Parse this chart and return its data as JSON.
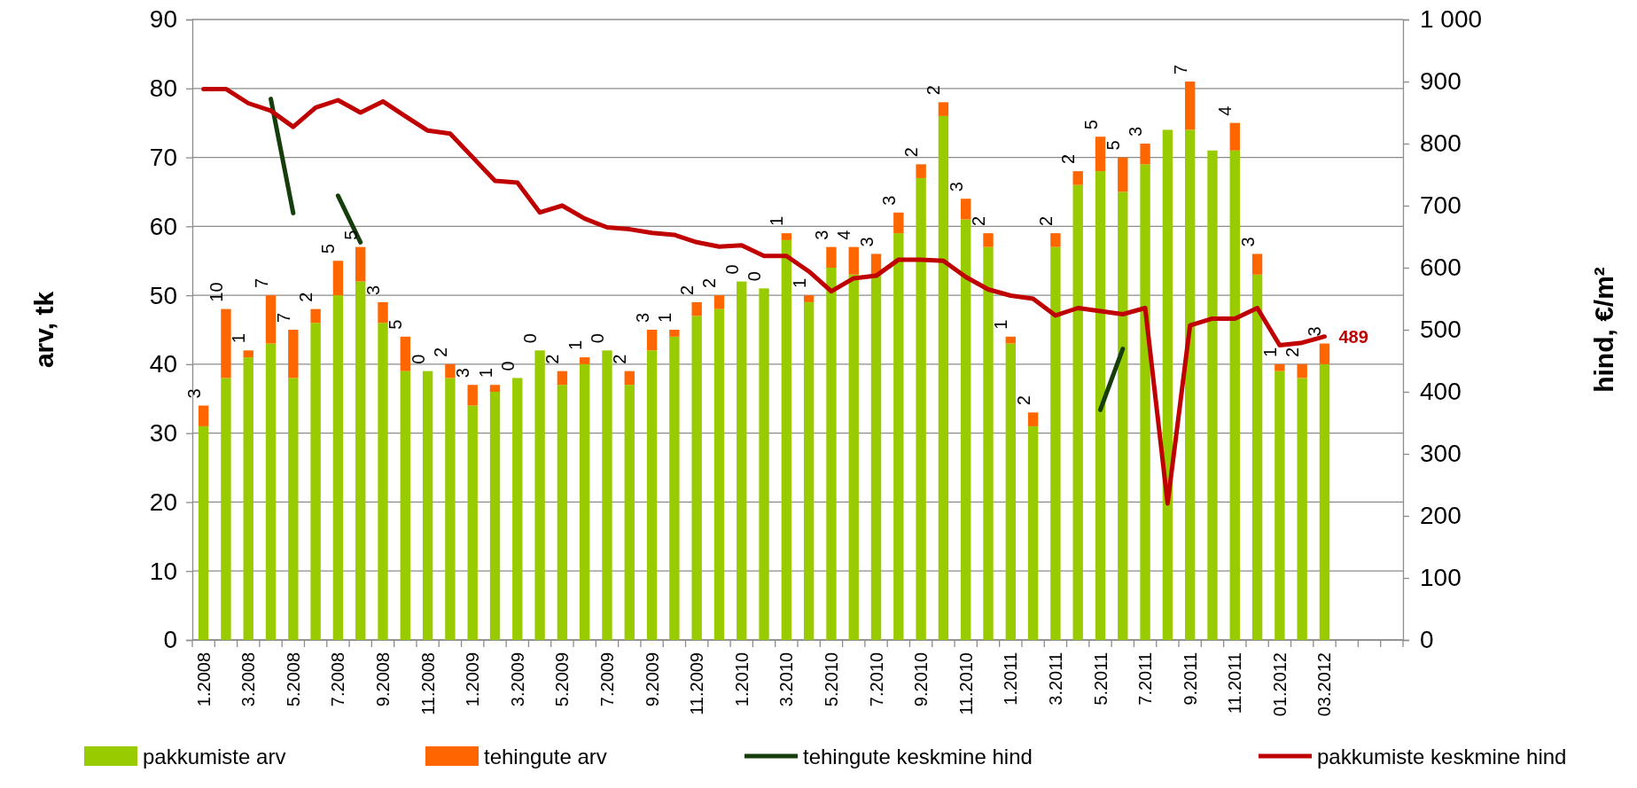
{
  "chart_data": {
    "type": "bar",
    "stacked": true,
    "ylabel": "arv, tk",
    "y2label": "hind, €/m²",
    "categories": [
      "1.2008",
      null,
      "3.2008",
      null,
      "5.2008",
      null,
      "7.2008",
      null,
      "9.2008",
      null,
      "11.2008",
      null,
      "1.2009",
      null,
      "3.2009",
      null,
      "5.2009",
      null,
      "7.2009",
      null,
      "9.2009",
      null,
      "11.2009",
      null,
      "1.2010",
      null,
      "3.2010",
      null,
      "5.2010",
      null,
      "7.2010",
      null,
      "9.2010",
      null,
      "11.2010",
      null,
      "1.2011",
      null,
      "3.2011",
      null,
      "5.2011",
      null,
      "7.2011",
      null,
      "9.2011",
      null,
      "11.2011",
      null,
      "01.2012",
      null,
      "03.2012",
      null,
      null,
      null
    ],
    "ylim": [
      0,
      90
    ],
    "yticks": [
      0,
      10,
      20,
      30,
      40,
      50,
      60,
      70,
      80,
      90
    ],
    "y2lim": [
      0,
      1000
    ],
    "y2ticks": [
      0,
      100,
      200,
      300,
      400,
      500,
      600,
      700,
      800,
      900,
      {
        "value": 1000,
        "label": "1 000"
      }
    ],
    "grid": "y",
    "legend": "bottom",
    "series": [
      {
        "name": "pakkumiste arv",
        "color": "#99cc00",
        "values": [
          31,
          38,
          41,
          43,
          38,
          46,
          50,
          52,
          46,
          39,
          39,
          38,
          34,
          36,
          38,
          42,
          37,
          40,
          42,
          37,
          42,
          44,
          47,
          48,
          52,
          51,
          58,
          49,
          54,
          53,
          53,
          59,
          67,
          76,
          61,
          57,
          43,
          31,
          57,
          66,
          68,
          65,
          69,
          74,
          74,
          71,
          71,
          53,
          39,
          38,
          40,
          null,
          null,
          null
        ]
      },
      {
        "name": "tehingute arv",
        "color": "#ff6600",
        "values": [
          3,
          10,
          1,
          7,
          7,
          2,
          5,
          5,
          3,
          5,
          0,
          2,
          3,
          1,
          0,
          0,
          2,
          1,
          0,
          2,
          3,
          1,
          2,
          2,
          0,
          0,
          1,
          1,
          3,
          4,
          3,
          3,
          2,
          2,
          3,
          2,
          1,
          2,
          2,
          2,
          5,
          5,
          3,
          0,
          7,
          0,
          4,
          3,
          1,
          2,
          3,
          null,
          null,
          null
        ],
        "value_labels": [
          "3",
          "10",
          "1",
          "7",
          "7",
          "2",
          "5",
          "5",
          "3",
          "5",
          "0",
          "2",
          "3",
          "1",
          "0",
          "0",
          "2",
          "1",
          "0",
          "2",
          "3",
          "1",
          "2",
          "2",
          "0",
          "0",
          "1",
          "1",
          "3",
          "4",
          "3",
          "3",
          "2",
          "2",
          "3",
          "2",
          "1",
          "2",
          "2",
          "2",
          "5",
          "5",
          "3",
          null,
          "7",
          null,
          "4",
          "3",
          "1",
          "2",
          "3",
          null,
          null,
          null
        ]
      },
      {
        "name": "tehingute keskmine hind",
        "type": "line",
        "axis": "y2",
        "color": "#163e0c",
        "values": [
          null,
          null,
          null,
          872,
          688,
          null,
          716,
          641,
          null,
          null,
          null,
          null,
          null,
          null,
          null,
          null,
          null,
          null,
          null,
          null,
          null,
          null,
          null,
          null,
          null,
          null,
          null,
          null,
          null,
          null,
          null,
          null,
          null,
          null,
          null,
          null,
          null,
          null,
          null,
          null,
          371,
          469,
          null,
          null,
          null,
          null,
          null,
          null,
          null,
          null,
          null,
          null,
          null,
          null
        ]
      },
      {
        "name": "pakkumiste keskmine hind",
        "type": "line",
        "axis": "y2",
        "color": "#c00000",
        "values": [
          888,
          888,
          865,
          853,
          827,
          858,
          870,
          850,
          868,
          844,
          821,
          816,
          778,
          740,
          737,
          689,
          700,
          679,
          665,
          662,
          656,
          653,
          641,
          634,
          636,
          619,
          619,
          594,
          562,
          583,
          587,
          613,
          613,
          611,
          585,
          565,
          555,
          550,
          523,
          535,
          530,
          525,
          535,
          220,
          507,
          518,
          518,
          535,
          475,
          479,
          489,
          null,
          null,
          null
        ],
        "value_labels": [
          null,
          null,
          null,
          null,
          null,
          null,
          null,
          null,
          null,
          null,
          null,
          null,
          null,
          null,
          null,
          null,
          null,
          null,
          null,
          null,
          null,
          null,
          null,
          null,
          null,
          null,
          null,
          null,
          null,
          null,
          null,
          null,
          null,
          null,
          null,
          null,
          null,
          null,
          null,
          null,
          null,
          null,
          null,
          null,
          null,
          null,
          null,
          null,
          null,
          null,
          "489",
          null,
          null,
          null
        ]
      }
    ]
  }
}
